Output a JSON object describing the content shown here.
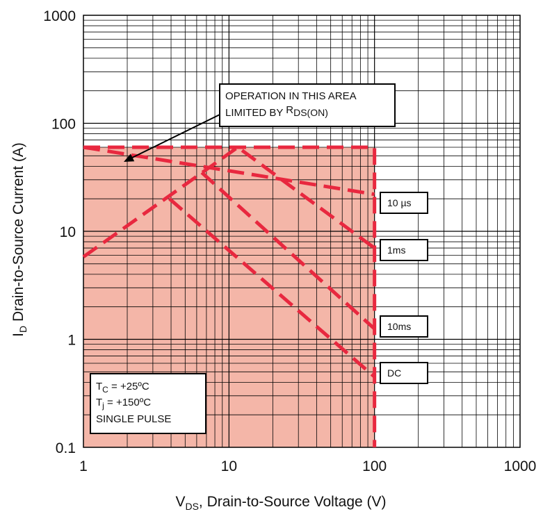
{
  "chart_data": {
    "type": "line",
    "x_scale": "log",
    "y_scale": "log",
    "xlim": [
      1,
      1000
    ],
    "ylim": [
      0.1,
      1000
    ],
    "x_ticks": [
      "1",
      "10",
      "100",
      "1000"
    ],
    "y_ticks": [
      "0.1",
      "1",
      "10",
      "100",
      "1000"
    ],
    "xlabel": {
      "main": "V",
      "sub": "DS",
      "rest": ", Drain-to-Source Voltage (V)"
    },
    "ylabel": {
      "main": "I",
      "sub": "D",
      "rest": " Drain-to-Source Current (A)"
    },
    "grid": true,
    "shaded_region": {
      "x": [
        1,
        100
      ],
      "y": [
        0.1,
        60
      ],
      "color": "#f4b6a8"
    },
    "line_color": "#e8283f",
    "series": [
      {
        "name": "10 µs",
        "points": [
          [
            1,
            60
          ],
          [
            100,
            22
          ]
        ]
      },
      {
        "name": "1ms",
        "points": [
          [
            1,
            5.8
          ],
          [
            11.5,
            60
          ],
          [
            100,
            7
          ]
        ]
      },
      {
        "name": "10ms",
        "points": [
          [
            6.5,
            35
          ],
          [
            100,
            1.25
          ]
        ]
      },
      {
        "name": "DC",
        "points": [
          [
            3.9,
            20
          ],
          [
            100,
            0.45
          ]
        ]
      }
    ],
    "boundary": {
      "points": [
        [
          1,
          60
        ],
        [
          100,
          60
        ],
        [
          100,
          0.1
        ]
      ]
    },
    "callout": {
      "line1": "OPERATION IN THIS AREA",
      "line2_prefix": "LIMITED BY ",
      "line2_main": "R",
      "line2_sub": "DS(ON)"
    },
    "conditions": [
      {
        "main": "T",
        "sub": "C",
        "rest": " = +25ºC"
      },
      {
        "main": "T",
        "sub": "j",
        "rest": " = +150ºC"
      },
      {
        "main": "SINGLE PULSE",
        "sub": "",
        "rest": ""
      }
    ]
  }
}
